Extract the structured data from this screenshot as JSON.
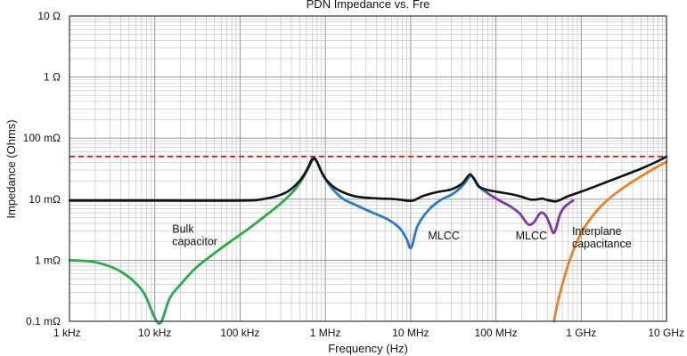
{
  "chart_data": {
    "type": "line",
    "title": "PDN Impedance vs. Fre",
    "xlabel": "Frequency (Hz)",
    "ylabel": "Impedance (Ohms)",
    "x_scale": "log",
    "y_scale": "log",
    "xlim": [
      1000,
      10000000000
    ],
    "ylim": [
      0.0001,
      10
    ],
    "grid": true,
    "x_ticks": [
      {
        "value": 1000,
        "label": "1 kHz"
      },
      {
        "value": 10000,
        "label": "10 kHz"
      },
      {
        "value": 100000,
        "label": "100 kHz"
      },
      {
        "value": 1000000,
        "label": "1 MHz"
      },
      {
        "value": 10000000,
        "label": "10 MHz"
      },
      {
        "value": 100000000,
        "label": "100 MHz"
      },
      {
        "value": 1000000000,
        "label": "1 GHz"
      },
      {
        "value": 10000000000,
        "label": "10 GHz"
      }
    ],
    "y_ticks": [
      {
        "value": 10,
        "label": "10 Ω"
      },
      {
        "value": 1,
        "label": "1 Ω"
      },
      {
        "value": 0.1,
        "label": "100 mΩ"
      },
      {
        "value": 0.01,
        "label": "10 mΩ"
      },
      {
        "value": 0.001,
        "label": "1 mΩ"
      },
      {
        "value": 0.0001,
        "label": "0.1 mΩ"
      }
    ],
    "target_impedance": {
      "value": 0.05,
      "color": "#d62728",
      "style": "dashed"
    },
    "series": [
      {
        "color": "#2aa84a",
        "x": [
          1000,
          2000,
          4000,
          7000,
          9000,
          10500,
          12000,
          15000,
          20000,
          30000,
          50000,
          80000,
          130000,
          200000,
          300000,
          450000,
          600000,
          680000,
          720000
        ],
        "y": [
          0.001,
          0.00093,
          0.00065,
          0.00033,
          0.00016,
          0.0001,
          0.0001,
          0.00024,
          0.0004,
          0.00074,
          0.0013,
          0.0021,
          0.0034,
          0.0054,
          0.0085,
          0.015,
          0.028,
          0.04,
          0.045
        ]
      },
      {
        "color": "#2b7bc0",
        "x": [
          640000,
          700000,
          750000,
          820000,
          950000,
          1200000,
          1600000,
          2200000,
          3500000,
          5500000,
          7500000,
          9000000,
          9800000,
          10500000,
          12000000,
          16000000,
          22000000,
          32000000,
          42000000,
          50000000,
          56000000,
          65000000,
          80000000
        ],
        "y": [
          0.035,
          0.046,
          0.046,
          0.038,
          0.024,
          0.015,
          0.0102,
          0.0082,
          0.0061,
          0.0046,
          0.0033,
          0.0022,
          0.0016,
          0.0018,
          0.0036,
          0.0065,
          0.0095,
          0.0125,
          0.0175,
          0.024,
          0.021,
          0.0155,
          0.0125
        ]
      },
      {
        "color": "#7a3b9c",
        "x": [
          80000000,
          110000000,
          150000000,
          190000000,
          220000000,
          245000000,
          280000000,
          320000000,
          350000000,
          390000000,
          430000000,
          470000000,
          510000000,
          560000000,
          640000000,
          800000000
        ],
        "y": [
          0.0125,
          0.0095,
          0.0075,
          0.0058,
          0.0044,
          0.0038,
          0.0042,
          0.0056,
          0.006,
          0.0052,
          0.0038,
          0.0028,
          0.0034,
          0.0055,
          0.0075,
          0.0095
        ]
      },
      {
        "color": "#e8822a",
        "x": [
          480000000,
          520000000,
          600000000,
          750000000,
          1000000000,
          1400000000,
          2000000000,
          3000000000,
          5000000000,
          7500000000,
          10000000000
        ],
        "y": [
          0.0001,
          0.00018,
          0.0004,
          0.0011,
          0.0028,
          0.0056,
          0.0095,
          0.0148,
          0.0235,
          0.033,
          0.041
        ]
      },
      {
        "color": "#111111",
        "x": [
          1000,
          10000,
          100000,
          200000,
          350000,
          500000,
          620000,
          690000,
          740000,
          790000,
          880000,
          1050000,
          1400000,
          2200000,
          4000000,
          6000000,
          8000000,
          9500000,
          11000000,
          14000000,
          20000000,
          30000000,
          40000000,
          46000000,
          50000000,
          55000000,
          62000000,
          75000000,
          100000000,
          150000000,
          200000000,
          250000000,
          300000000,
          350000000,
          400000000,
          500000000,
          600000000,
          700000000,
          900000000,
          1300000000,
          2000000000,
          3000000000,
          5000000000,
          7500000000,
          10000000000
        ],
        "y": [
          0.0095,
          0.0095,
          0.0095,
          0.0102,
          0.013,
          0.02,
          0.032,
          0.043,
          0.047,
          0.042,
          0.03,
          0.02,
          0.0143,
          0.0112,
          0.0103,
          0.0101,
          0.0097,
          0.0094,
          0.0096,
          0.0113,
          0.013,
          0.0145,
          0.018,
          0.023,
          0.0255,
          0.022,
          0.0165,
          0.0145,
          0.0133,
          0.0121,
          0.011,
          0.0099,
          0.0099,
          0.0102,
          0.0097,
          0.0092,
          0.0101,
          0.0112,
          0.0126,
          0.0152,
          0.0192,
          0.0238,
          0.0315,
          0.0405,
          0.05
        ]
      }
    ],
    "annotations": [
      {
        "lines": [
          "Bulk",
          "capacitor"
        ],
        "x": 16000,
        "y": 0.0028
      },
      {
        "lines": [
          "MLCC"
        ],
        "x": 16000000,
        "y": 0.0022
      },
      {
        "lines": [
          "MLCC"
        ],
        "x": 170000000,
        "y": 0.0022
      },
      {
        "lines": [
          "Interplane",
          "capacitance"
        ],
        "x": 780000000,
        "y": 0.0026
      }
    ]
  }
}
